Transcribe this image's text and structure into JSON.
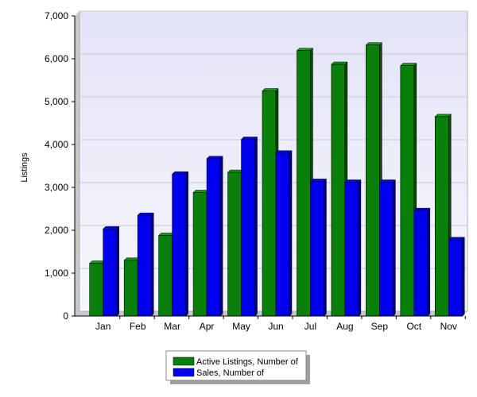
{
  "chart_data": {
    "type": "bar",
    "title": "",
    "xlabel": "",
    "ylabel": "Listings",
    "ylim": [
      0,
      7000
    ],
    "yticks": [
      0,
      1000,
      2000,
      3000,
      4000,
      5000,
      6000,
      7000
    ],
    "yticks_display": [
      "0",
      "1,000",
      "2,000",
      "3,000",
      "4,000",
      "5,000",
      "6,000",
      "7,000"
    ],
    "grid": true,
    "legend_position": "bottom-center",
    "categories": [
      "Jan",
      "Feb",
      "Mar",
      "Apr",
      "May",
      "Jun",
      "Jul",
      "Aug",
      "Sep",
      "Oct",
      "Nov"
    ],
    "series": [
      {
        "name": "Active Listings, Number of",
        "color": "#0a7f0a",
        "values": [
          1230,
          1300,
          1880,
          2880,
          3350,
          5250,
          6190,
          5870,
          6320,
          5840,
          4650
        ]
      },
      {
        "name": "Sales, Number of",
        "color": "#0000ee",
        "values": [
          2030,
          2350,
          3310,
          3670,
          4120,
          3800,
          3140,
          3120,
          3120,
          2460,
          1780
        ]
      }
    ]
  }
}
